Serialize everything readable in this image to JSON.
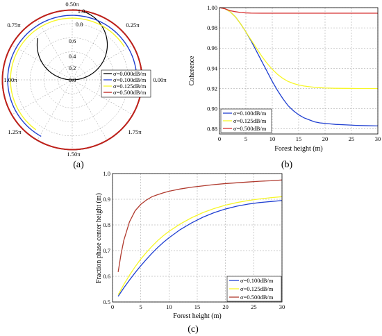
{
  "chart_data": [
    {
      "type": "polar",
      "panel_label": "(a)",
      "angle_ticks": [
        "0.50π",
        "0.25π",
        "0.00π",
        "1.75π",
        "1.50π",
        "1.25π",
        "1.00π",
        "0.75π"
      ],
      "radial_ticks": [
        "0.0",
        "0.2",
        "0.4",
        "0.6",
        "0.8",
        "1.0"
      ],
      "rlim": [
        0,
        1
      ],
      "grid": true,
      "legend_position": "bottom-right",
      "colors": {
        "axis": "#000000",
        "grid": "#999999"
      },
      "series": [
        {
          "name": "σ=0.000dB/m",
          "color": "#000000",
          "kind": "spiral"
        },
        {
          "name": "σ=0.100dB/m",
          "color": "#1f3fd1",
          "r": 0.92,
          "theta_start_pi": 0.0,
          "theta_end_pi": 1.34
        },
        {
          "name": "σ=0.125dB/m",
          "color": "#f7f728",
          "r": 0.88,
          "theta_start_pi": 0.18,
          "theta_end_pi": 1.3
        },
        {
          "name": "σ=0.500dB/m",
          "color": "#c0201a",
          "r": 0.995,
          "theta_start_pi": 0.0,
          "theta_end_pi": 2.0
        }
      ]
    },
    {
      "type": "line",
      "panel_label": "(b)",
      "xlabel": "Forest height (m)",
      "ylabel": "Coherence",
      "xlim": [
        0,
        30
      ],
      "ylim": [
        0.875,
        1.0
      ],
      "x_ticks": [
        0,
        5,
        10,
        15,
        20,
        25,
        30
      ],
      "y_ticks": [
        "0.88",
        "0.90",
        "0.92",
        "0.94",
        "0.96",
        "0.98",
        "1.00"
      ],
      "grid": true,
      "legend_position": "bottom-left",
      "series": [
        {
          "name": "σ=0.100dB/m",
          "color": "#1f3fd1",
          "x": [
            0,
            1,
            2,
            3,
            4,
            5,
            6,
            7,
            8,
            9,
            10,
            11,
            12,
            13,
            14,
            15,
            16,
            17,
            18,
            19,
            20,
            22,
            24,
            26,
            28,
            30
          ],
          "y": [
            1.0,
            0.999,
            0.996,
            0.991,
            0.984,
            0.976,
            0.967,
            0.957,
            0.947,
            0.937,
            0.927,
            0.918,
            0.91,
            0.903,
            0.898,
            0.894,
            0.891,
            0.889,
            0.887,
            0.886,
            0.8855,
            0.8845,
            0.884,
            0.8835,
            0.8832,
            0.883
          ]
        },
        {
          "name": "σ=0.125dB/m",
          "color": "#f7f728",
          "x": [
            0,
            1,
            2,
            3,
            4,
            5,
            6,
            7,
            8,
            9,
            10,
            11,
            12,
            13,
            14,
            15,
            16,
            17,
            18,
            19,
            20,
            22,
            24,
            26,
            28,
            30
          ],
          "y": [
            1.0,
            0.999,
            0.996,
            0.991,
            0.984,
            0.976,
            0.968,
            0.96,
            0.952,
            0.945,
            0.939,
            0.934,
            0.93,
            0.927,
            0.925,
            0.9235,
            0.9225,
            0.9218,
            0.9212,
            0.9208,
            0.9205,
            0.9202,
            0.9201,
            0.92,
            0.92,
            0.92
          ]
        },
        {
          "name": "σ=0.500dB/m",
          "color": "#d83030",
          "x": [
            0,
            1,
            2,
            3,
            4,
            5,
            6,
            8,
            10,
            15,
            20,
            25,
            30
          ],
          "y": [
            1.0,
            0.999,
            0.997,
            0.996,
            0.9952,
            0.9948,
            0.9946,
            0.9945,
            0.9945,
            0.9945,
            0.9945,
            0.9945,
            0.9945
          ]
        }
      ]
    },
    {
      "type": "line",
      "panel_label": "(c)",
      "xlabel": "Forest height (m)",
      "ylabel": "Fraction phase center height (m)",
      "xlim": [
        0,
        30
      ],
      "ylim": [
        0.5,
        1.0
      ],
      "x_ticks": [
        0,
        5,
        10,
        15,
        20,
        25,
        30
      ],
      "y_ticks": [
        "0.5",
        "0.6",
        "0.7",
        "0.8",
        "0.9",
        "1.0"
      ],
      "grid": true,
      "legend_position": "bottom-right",
      "series": [
        {
          "name": "σ=0.100dB/m",
          "color": "#1f3fd1",
          "x": [
            1,
            2,
            3,
            4,
            5,
            6,
            7,
            8,
            9,
            10,
            12,
            14,
            16,
            18,
            20,
            22,
            24,
            26,
            28,
            30
          ],
          "y": [
            0.522,
            0.555,
            0.585,
            0.614,
            0.641,
            0.666,
            0.69,
            0.712,
            0.732,
            0.75,
            0.782,
            0.808,
            0.83,
            0.848,
            0.862,
            0.873,
            0.881,
            0.887,
            0.891,
            0.895
          ]
        },
        {
          "name": "σ=0.125dB/m",
          "color": "#f7f728",
          "x": [
            1,
            2,
            3,
            4,
            5,
            6,
            7,
            8,
            9,
            10,
            12,
            14,
            16,
            18,
            20,
            22,
            24,
            26,
            28,
            30
          ],
          "y": [
            0.528,
            0.568,
            0.604,
            0.637,
            0.667,
            0.693,
            0.717,
            0.739,
            0.758,
            0.775,
            0.804,
            0.828,
            0.848,
            0.864,
            0.877,
            0.887,
            0.895,
            0.901,
            0.906,
            0.91
          ]
        },
        {
          "name": "σ=0.500dB/m",
          "color": "#b03a2e",
          "x": [
            1,
            1.5,
            2,
            3,
            4,
            5,
            6,
            7,
            8,
            9,
            10,
            12,
            14,
            16,
            18,
            20,
            22,
            24,
            26,
            28,
            30
          ],
          "y": [
            0.617,
            0.685,
            0.74,
            0.812,
            0.855,
            0.88,
            0.897,
            0.91,
            0.918,
            0.925,
            0.931,
            0.94,
            0.947,
            0.952,
            0.957,
            0.961,
            0.964,
            0.967,
            0.97,
            0.972,
            0.975
          ]
        }
      ]
    }
  ]
}
